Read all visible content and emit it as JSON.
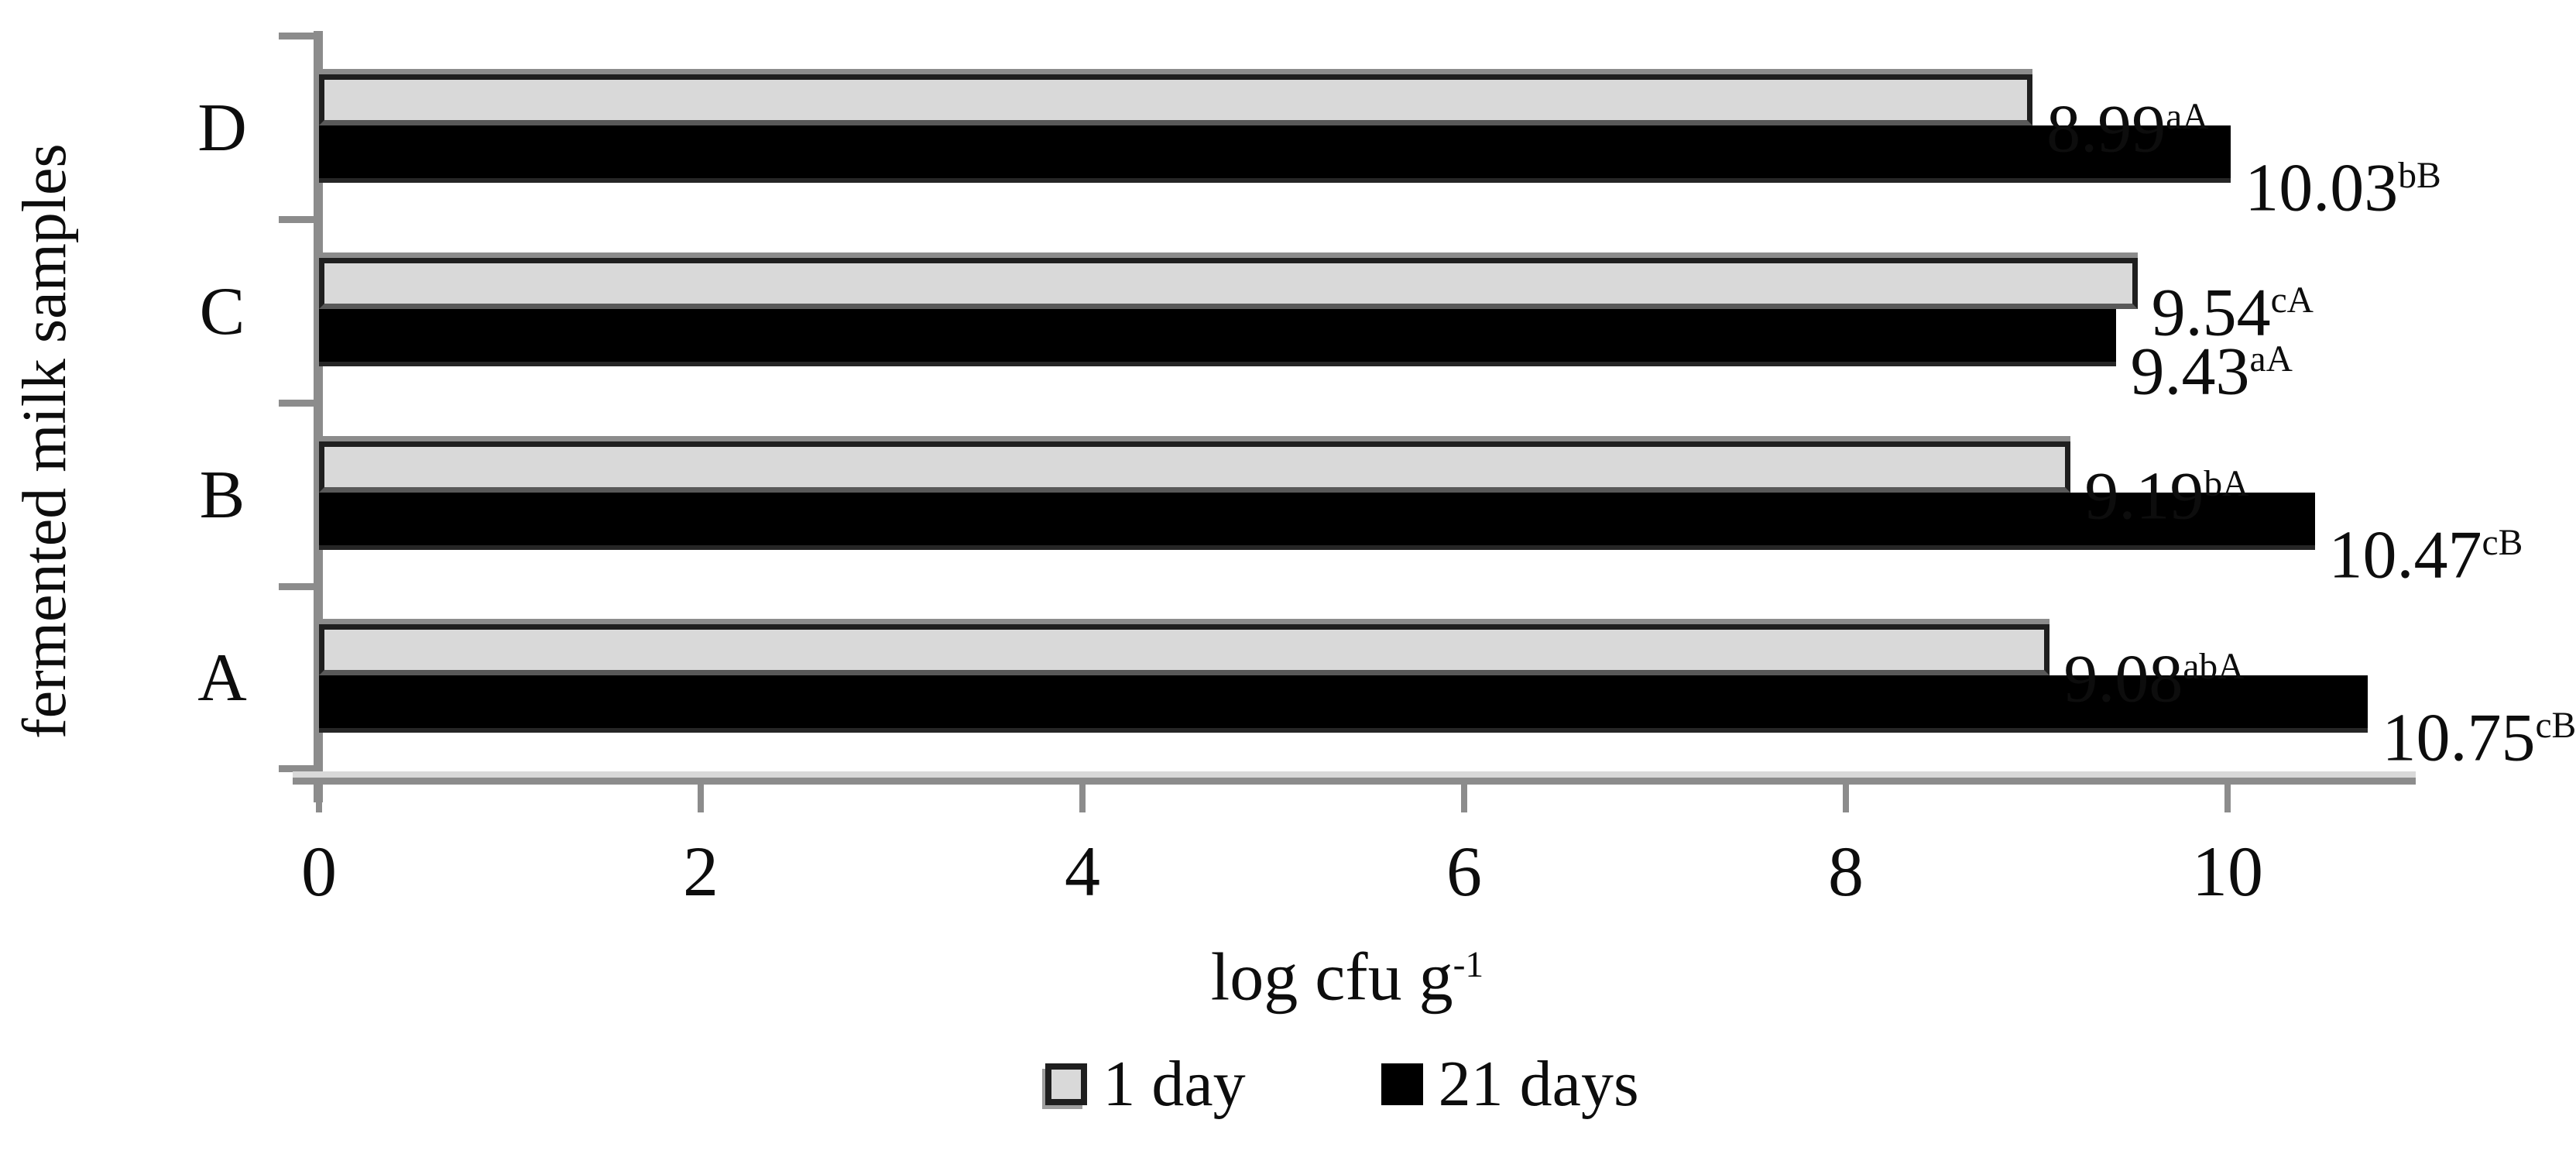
{
  "chart_data": {
    "type": "bar",
    "orientation": "horizontal",
    "title": "",
    "xlabel": "log cfu g⁻¹",
    "xlabel_base": "log cfu g",
    "xlabel_sup": "-1",
    "ylabel": "fermented milk samples",
    "xlim": [
      0,
      11
    ],
    "xtick_values": [
      0,
      2,
      4,
      6,
      8,
      10
    ],
    "xticks": [
      "0",
      "2",
      "4",
      "6",
      "8",
      "10"
    ],
    "grid": false,
    "legend_position": "bottom",
    "categories": [
      "D",
      "C",
      "B",
      "A"
    ],
    "series": [
      {
        "name": "1 day",
        "color": "#d9d9d9",
        "values": [
          8.99,
          9.54,
          9.19,
          9.08
        ],
        "labels": [
          "8.99aA",
          "9.54cA",
          "9.19bA",
          "9.08abA"
        ]
      },
      {
        "name": "21 days",
        "color": "#000000",
        "values": [
          10.03,
          9.43,
          10.47,
          10.75
        ],
        "labels": [
          "10.03bB",
          "9.43aA",
          "10.47cB",
          "10.75cB"
        ]
      }
    ],
    "groups": [
      {
        "category": "D",
        "day1": {
          "value": 8.99,
          "label": "8.99",
          "sup": "aA"
        },
        "day21": {
          "value": 10.03,
          "label": "10.03",
          "sup": "bB"
        }
      },
      {
        "category": "C",
        "day1": {
          "value": 9.54,
          "label": "9.54",
          "sup": "cA"
        },
        "day21": {
          "value": 9.43,
          "label": "9.43",
          "sup": "aA"
        }
      },
      {
        "category": "B",
        "day1": {
          "value": 9.19,
          "label": "9.19",
          "sup": "bA"
        },
        "day21": {
          "value": 10.47,
          "label": "10.47",
          "sup": "cB"
        }
      },
      {
        "category": "A",
        "day1": {
          "value": 9.08,
          "label": "9.08",
          "sup": "abA"
        },
        "day21": {
          "value": 10.75,
          "label": "10.75",
          "sup": "cB"
        }
      }
    ]
  },
  "legend": {
    "items": [
      {
        "label": "1 day",
        "color": "#d9d9d9"
      },
      {
        "label": "21 days",
        "color": "#000000"
      }
    ]
  },
  "colors": {
    "bar_1day_fill": "#d9d9d9",
    "bar_1day_border": "#1f1f1f",
    "bar_21days_fill": "#000000",
    "axis_line": "#8c8c8c",
    "text": "#000000"
  }
}
